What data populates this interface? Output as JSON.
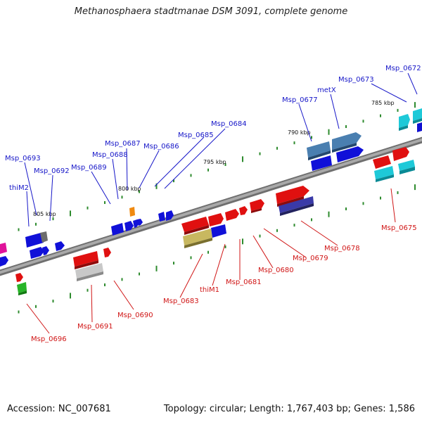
{
  "title": "Methanosphaera stadtmanae DSM 3091, complete genome",
  "footer": {
    "accession": "Accession: NC_007681",
    "summary": "Topology: circular; Length: 1,767,403 bp; Genes: 1,586"
  },
  "colors": {
    "backbone": "#808080",
    "top_label": "#1616c8",
    "bottom_label": "#d01515",
    "tick": "#2e8b2e"
  },
  "scale_labels": [
    "785 kbp",
    "790 kbp",
    "795 kbp",
    "800 kbp",
    "805 kbp"
  ],
  "top_labels": [
    "Msp_0672",
    "Msp_0673",
    "metX",
    "Msp_0677",
    "Msp_0684",
    "Msp_0685",
    "Msp_0686",
    "Msp_0687",
    "Msp_0688",
    "Msp_0689",
    "Msp_0693",
    "Msp_0692",
    "thiM2"
  ],
  "bottom_labels": [
    "Msp_0675",
    "Msp_0678",
    "Msp_0679",
    "Msp_0680",
    "Msp_0681",
    "thiM1",
    "Msp_0683",
    "Msp_0690",
    "Msp_0691",
    "Msp_0696"
  ]
}
